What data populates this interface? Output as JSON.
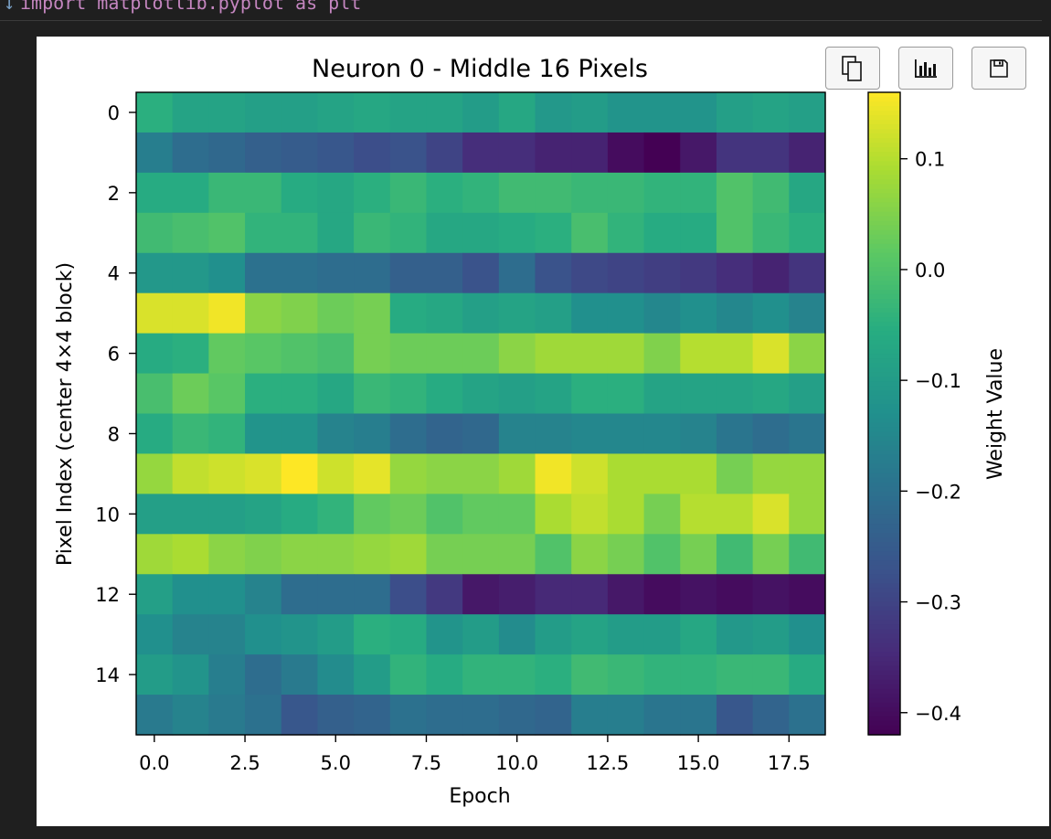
{
  "notebook": {
    "chevron": "↓",
    "code_line": "import matplotlib.pyplot as plt"
  },
  "toolbar": {
    "copy_icon": "copy-icon",
    "chart_icon": "chart-icon",
    "save_icon": "save-icon"
  },
  "colors": {
    "page_bg": "#1f1f1f",
    "card_bg": "#ffffff",
    "colormap": "viridis"
  },
  "chart_data": {
    "type": "heatmap",
    "title": "Neuron 0 - Middle 16 Pixels",
    "xlabel": "Epoch",
    "ylabel": "Pixel Index (center 4×4 block)",
    "x_range": [
      -0.5,
      18.5
    ],
    "y_range": [
      15.5,
      -0.5
    ],
    "x_ticks": [
      0.0,
      2.5,
      5.0,
      7.5,
      10.0,
      12.5,
      15.0,
      17.5
    ],
    "x_tick_labels": [
      "0.0",
      "2.5",
      "5.0",
      "7.5",
      "10.0",
      "12.5",
      "15.0",
      "17.5"
    ],
    "y_ticks": [
      0,
      2,
      4,
      6,
      8,
      10,
      12,
      14
    ],
    "y_tick_labels": [
      "0",
      "2",
      "4",
      "6",
      "8",
      "10",
      "12",
      "14"
    ],
    "colorbar": {
      "label": "Weight Value",
      "vmin": -0.42,
      "vmax": 0.16,
      "ticks": [
        0.1,
        0.0,
        -0.1,
        -0.2,
        -0.3,
        -0.4
      ],
      "tick_labels": [
        "0.1",
        "0.0",
        "−0.1",
        "−0.2",
        "−0.3",
        "−0.4"
      ]
    },
    "rows": 16,
    "cols": 19,
    "values": [
      [
        -0.05,
        -0.08,
        -0.08,
        -0.09,
        -0.09,
        -0.08,
        -0.07,
        -0.08,
        -0.08,
        -0.1,
        -0.07,
        -0.11,
        -0.1,
        -0.12,
        -0.12,
        -0.12,
        -0.09,
        -0.08,
        -0.09
      ],
      [
        -0.17,
        -0.21,
        -0.22,
        -0.24,
        -0.25,
        -0.26,
        -0.28,
        -0.27,
        -0.3,
        -0.34,
        -0.34,
        -0.36,
        -0.36,
        -0.4,
        -0.42,
        -0.38,
        -0.33,
        -0.33,
        -0.36
      ],
      [
        -0.06,
        -0.06,
        -0.03,
        -0.03,
        -0.06,
        -0.07,
        -0.05,
        -0.03,
        -0.05,
        -0.04,
        -0.02,
        -0.02,
        -0.03,
        -0.03,
        -0.04,
        -0.04,
        0.0,
        -0.02,
        -0.07
      ],
      [
        -0.02,
        -0.01,
        0.0,
        -0.04,
        -0.04,
        -0.07,
        -0.03,
        -0.04,
        -0.07,
        -0.07,
        -0.06,
        -0.05,
        -0.01,
        -0.04,
        -0.06,
        -0.06,
        0.0,
        -0.03,
        -0.05
      ],
      [
        -0.11,
        -0.11,
        -0.13,
        -0.2,
        -0.2,
        -0.21,
        -0.21,
        -0.24,
        -0.24,
        -0.27,
        -0.21,
        -0.27,
        -0.29,
        -0.3,
        -0.31,
        -0.32,
        -0.34,
        -0.36,
        -0.33
      ],
      [
        0.13,
        0.13,
        0.15,
        0.06,
        0.05,
        0.03,
        0.04,
        -0.06,
        -0.07,
        -0.09,
        -0.08,
        -0.09,
        -0.13,
        -0.13,
        -0.15,
        -0.13,
        -0.15,
        -0.13,
        -0.16
      ],
      [
        -0.06,
        -0.05,
        0.02,
        0.01,
        0.0,
        -0.01,
        0.04,
        0.03,
        0.03,
        0.03,
        0.06,
        0.08,
        0.08,
        0.08,
        0.05,
        0.1,
        0.1,
        0.13,
        0.06
      ],
      [
        -0.01,
        0.03,
        0.01,
        -0.05,
        -0.05,
        -0.07,
        -0.03,
        -0.04,
        -0.06,
        -0.08,
        -0.09,
        -0.08,
        -0.05,
        -0.05,
        -0.08,
        -0.08,
        -0.08,
        -0.07,
        -0.09
      ],
      [
        -0.06,
        -0.03,
        -0.04,
        -0.12,
        -0.12,
        -0.16,
        -0.17,
        -0.21,
        -0.23,
        -0.22,
        -0.16,
        -0.16,
        -0.15,
        -0.15,
        -0.15,
        -0.16,
        -0.19,
        -0.21,
        -0.19
      ],
      [
        0.07,
        0.11,
        0.12,
        0.13,
        0.16,
        0.12,
        0.14,
        0.07,
        0.06,
        0.06,
        0.08,
        0.15,
        0.12,
        0.09,
        0.09,
        0.09,
        0.04,
        0.07,
        0.07
      ],
      [
        -0.09,
        -0.09,
        -0.09,
        -0.08,
        -0.06,
        -0.04,
        0.02,
        0.03,
        0.0,
        0.02,
        0.02,
        0.09,
        0.11,
        0.09,
        0.04,
        0.1,
        0.1,
        0.13,
        0.07
      ],
      [
        0.08,
        0.09,
        0.06,
        0.05,
        0.06,
        0.06,
        0.07,
        0.08,
        0.04,
        0.04,
        0.04,
        0.0,
        0.06,
        0.04,
        0.0,
        0.04,
        -0.02,
        0.04,
        -0.02
      ],
      [
        -0.09,
        -0.13,
        -0.13,
        -0.16,
        -0.21,
        -0.21,
        -0.21,
        -0.28,
        -0.32,
        -0.38,
        -0.37,
        -0.35,
        -0.35,
        -0.38,
        -0.4,
        -0.39,
        -0.4,
        -0.39,
        -0.4
      ],
      [
        -0.13,
        -0.16,
        -0.16,
        -0.13,
        -0.12,
        -0.1,
        -0.05,
        -0.06,
        -0.12,
        -0.1,
        -0.14,
        -0.1,
        -0.08,
        -0.1,
        -0.1,
        -0.07,
        -0.11,
        -0.1,
        -0.13
      ],
      [
        -0.1,
        -0.12,
        -0.17,
        -0.21,
        -0.18,
        -0.14,
        -0.1,
        -0.04,
        -0.06,
        -0.04,
        -0.04,
        -0.05,
        -0.02,
        -0.03,
        -0.04,
        -0.04,
        -0.03,
        -0.03,
        -0.06
      ],
      [
        -0.18,
        -0.16,
        -0.18,
        -0.2,
        -0.26,
        -0.24,
        -0.23,
        -0.2,
        -0.21,
        -0.21,
        -0.22,
        -0.23,
        -0.17,
        -0.17,
        -0.19,
        -0.19,
        -0.26,
        -0.23,
        -0.2
      ]
    ]
  }
}
